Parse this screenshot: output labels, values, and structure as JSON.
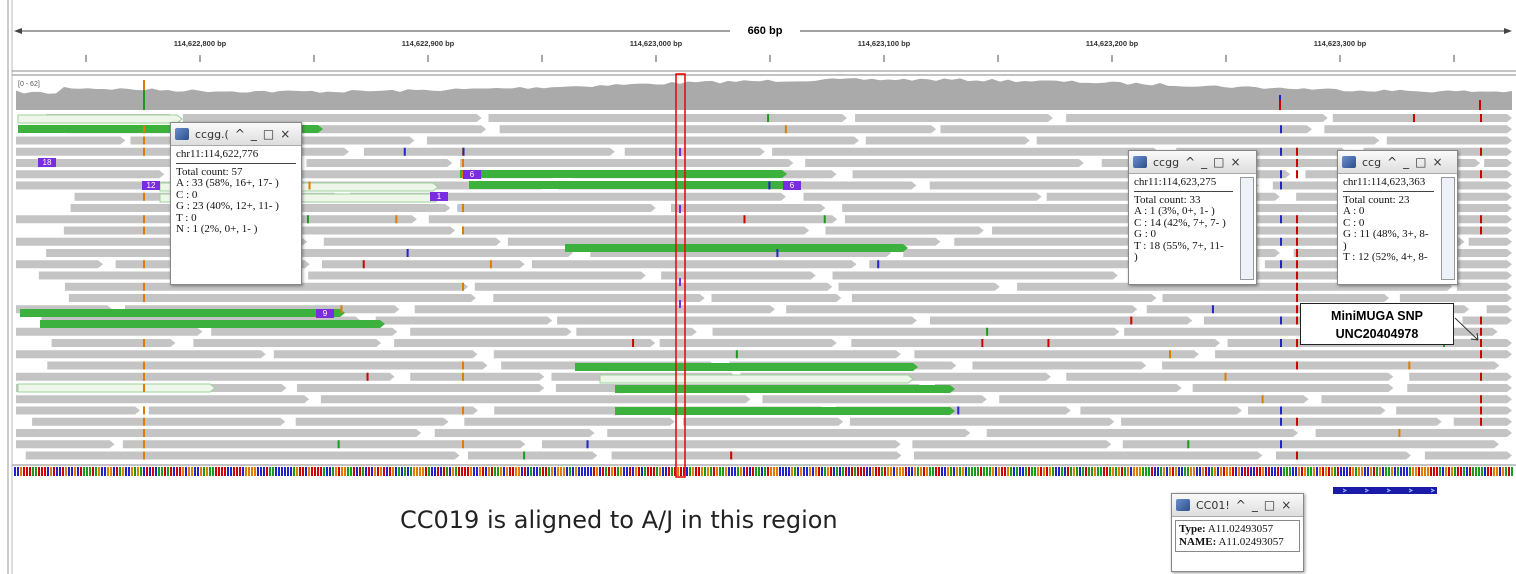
{
  "ruler": {
    "span": "660 bp",
    "ticks": [
      "114,622,800 bp",
      "114,622,900 bp",
      "114,623,000 bp",
      "114,623,100 bp",
      "114,623,200 bp",
      "114,623,300 bp"
    ]
  },
  "coverage": {
    "range": "[0 - 62]"
  },
  "window_controls": [
    "^",
    "_",
    "□",
    "×"
  ],
  "popups": [
    {
      "title": "ccgg.(",
      "locus": "chr11:114,622,776",
      "lines": [
        "Total count: 57",
        "A : 33 (58%, 16+, 17- )",
        "C : 0",
        "G : 23 (40%, 12+, 11- )",
        "T : 0",
        "N : 1 (2%, 0+, 1- )"
      ]
    },
    {
      "title": "ccgg",
      "locus": "chr11:114,623,275",
      "lines": [
        "Total count: 33",
        "A : 1 (3%, 0+, 1- )",
        "C : 14 (42%, 7+, 7- )",
        "G : 0",
        "T : 18 (55%, 7+, 11-",
        ")"
      ]
    },
    {
      "title": "ccg",
      "locus": "chr11:114,623,363",
      "lines": [
        "Total count: 23",
        "A : 0",
        "C : 0",
        "G : 11 (48%, 3+, 8-",
        ")",
        "T : 12 (52%, 4+, 8-"
      ]
    }
  ],
  "read_labels": [
    "18",
    "12",
    "6",
    "6",
    "1",
    "9"
  ],
  "annotation": {
    "lines": [
      "MiniMUGA SNP",
      "UNC20404978"
    ]
  },
  "caption": "CC019 is aligned to A/J in this region",
  "feature_popup": {
    "title": "CC01!",
    "rows": [
      {
        "key": "Type:",
        "value": "A11.02493057"
      },
      {
        "key": "NAME:",
        "value": "A11.02493057"
      }
    ]
  }
}
